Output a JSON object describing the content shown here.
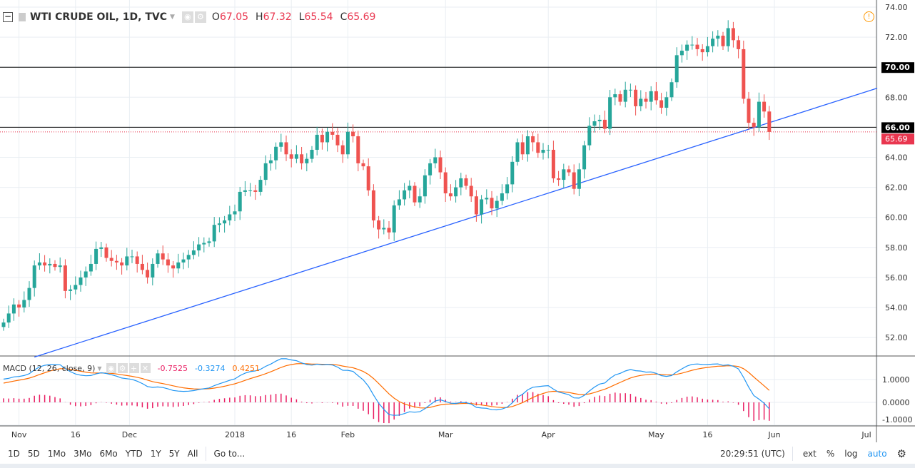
{
  "header": {
    "title": "WTI CRUDE OIL, 1D, TVC",
    "open_label": "O",
    "open": "67.05",
    "high_label": "H",
    "high": "67.32",
    "low_label": "L",
    "low": "65.54",
    "close_label": "C",
    "close": "65.69"
  },
  "macd": {
    "label": "MACD (12, 26, close, 9)",
    "hist": "-0.7525",
    "macd": "-0.3274",
    "signal": "0.4251",
    "colors": {
      "macd": "#2196f3",
      "signal": "#ff6d00",
      "hist": "#e91e63"
    }
  },
  "colors": {
    "up": "#26a69a",
    "down": "#ef5350",
    "trendline": "#2962ff",
    "last_price": "#e9364f"
  },
  "bottom": {
    "ranges": [
      "1D",
      "5D",
      "1Mo",
      "3Mo",
      "6Mo",
      "YTD",
      "1Y",
      "5Y",
      "All"
    ],
    "goto": "Go to...",
    "time": "20:29:51 (UTC)",
    "ext": "ext",
    "pct": "%",
    "log": "log",
    "auto": "auto"
  },
  "chart_data": {
    "type": "candlestick",
    "ylim": [
      51,
      74.5
    ],
    "price_ticks": [
      "74.00",
      "72.00",
      "70.00",
      "68.00",
      "66.00",
      "64.00",
      "62.00",
      "60.00",
      "58.00",
      "56.00",
      "54.00",
      "52.00"
    ],
    "macd_ticks": [
      "1.0000",
      "0.0000",
      "-1.0000"
    ],
    "x_ticks": [
      {
        "label": "Nov",
        "i": 3
      },
      {
        "label": "16",
        "i": 14
      },
      {
        "label": "Dec",
        "i": 24.5
      },
      {
        "label": "2018",
        "i": 45
      },
      {
        "label": "16",
        "i": 56
      },
      {
        "label": "Feb",
        "i": 67
      },
      {
        "label": "Mar",
        "i": 86
      },
      {
        "label": "Apr",
        "i": 106
      },
      {
        "label": "May",
        "i": 127
      },
      {
        "label": "16",
        "i": 137
      },
      {
        "label": "Jun",
        "i": 150
      },
      {
        "label": "Jul",
        "i": 170
      }
    ],
    "horizontal_lines": [
      {
        "price": 70,
        "label": "70.00"
      },
      {
        "price": 66,
        "label": "66.00"
      }
    ],
    "last_price": {
      "price": 65.69,
      "label": "65.69"
    },
    "trendline": [
      [
        6,
        50.7
      ],
      [
        170,
        68.6
      ]
    ],
    "closes": [
      53.0,
      53.6,
      54.2,
      54.0,
      54.5,
      55.3,
      56.8,
      57.0,
      56.8,
      56.9,
      56.7,
      56.8,
      55.1,
      55.2,
      55.5,
      56.0,
      56.4,
      56.9,
      57.9,
      58.0,
      57.3,
      57.1,
      57.0,
      56.8,
      57.4,
      57.4,
      56.9,
      56.5,
      56.0,
      56.9,
      57.6,
      57.2,
      56.8,
      56.6,
      57.0,
      57.2,
      57.5,
      57.8,
      58.2,
      58.3,
      58.4,
      59.5,
      59.6,
      59.8,
      60.2,
      60.4,
      61.7,
      61.8,
      61.8,
      61.7,
      62.5,
      63.6,
      63.8,
      64.7,
      65.0,
      64.2,
      63.9,
      64.2,
      63.6,
      63.9,
      64.5,
      65.5,
      65.0,
      65.7,
      65.5,
      64.8,
      64.2,
      65.7,
      65.4,
      63.6,
      63.4,
      61.8,
      59.8,
      59.2,
      59.3,
      59.0,
      60.8,
      61.2,
      61.8,
      62.1,
      61.0,
      61.4,
      62.8,
      63.6,
      64.0,
      63.0,
      61.6,
      61.4,
      62.0,
      62.6,
      62.1,
      61.4,
      60.2,
      61.2,
      61.3,
      60.6,
      61.1,
      61.6,
      62.2,
      63.7,
      65.0,
      64.2,
      65.4,
      65.0,
      64.3,
      64.5,
      64.5,
      62.6,
      62.5,
      63.2,
      63.0,
      61.9,
      63.2,
      64.8,
      66.1,
      66.4,
      66.5,
      65.9,
      68.0,
      68.2,
      67.7,
      68.5,
      68.5,
      67.4,
      67.9,
      67.7,
      68.4,
      67.8,
      67.3,
      68.0,
      69.0,
      70.8,
      71.1,
      71.5,
      71.5,
      71.2,
      71.0,
      71.4,
      71.9,
      72.1,
      71.4,
      72.6,
      71.8,
      71.2,
      67.9,
      66.3,
      66.0,
      67.7,
      67.05,
      65.69
    ]
  }
}
